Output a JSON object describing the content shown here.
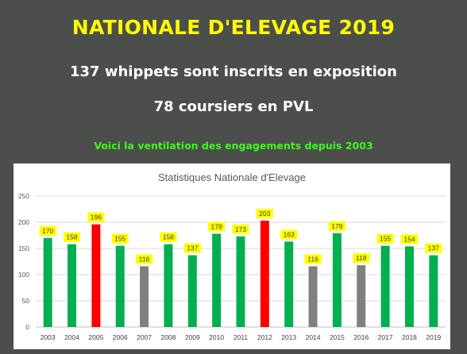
{
  "header": {
    "title": "NATIONALE D'ELEVAGE 2019",
    "line1": "137 whippets sont inscrits en exposition",
    "line2": "78 coursiers en PVL",
    "line3": "Voici la ventilation des engagements depuis 2003"
  },
  "colors": {
    "background": "#4c4e4b",
    "title": "#ffff00",
    "highlight_text": "#39ff14",
    "label_bg": "#ffff00",
    "green": "#00b050",
    "red": "#ff0000",
    "grey": "#808080"
  },
  "chart_data": {
    "type": "bar",
    "title": "Statistiques Nationale d'Elevage",
    "xlabel": "",
    "ylabel": "",
    "ylim": [
      0,
      250
    ],
    "yticks": [
      0,
      50,
      100,
      150,
      200,
      250
    ],
    "grid": true,
    "legend": "none",
    "categories": [
      "2003",
      "2004",
      "2005",
      "2006",
      "2007",
      "2008",
      "2009",
      "2010",
      "2011",
      "2012",
      "2013",
      "2014",
      "2015",
      "2016",
      "2017",
      "2018",
      "2019"
    ],
    "values": [
      170,
      158,
      196,
      155,
      116,
      158,
      137,
      178,
      173,
      203,
      163,
      116,
      179,
      118,
      155,
      154,
      137
    ],
    "bar_colors": [
      "green",
      "green",
      "red",
      "green",
      "grey",
      "green",
      "green",
      "green",
      "green",
      "red",
      "green",
      "grey",
      "green",
      "grey",
      "green",
      "green",
      "green"
    ]
  }
}
